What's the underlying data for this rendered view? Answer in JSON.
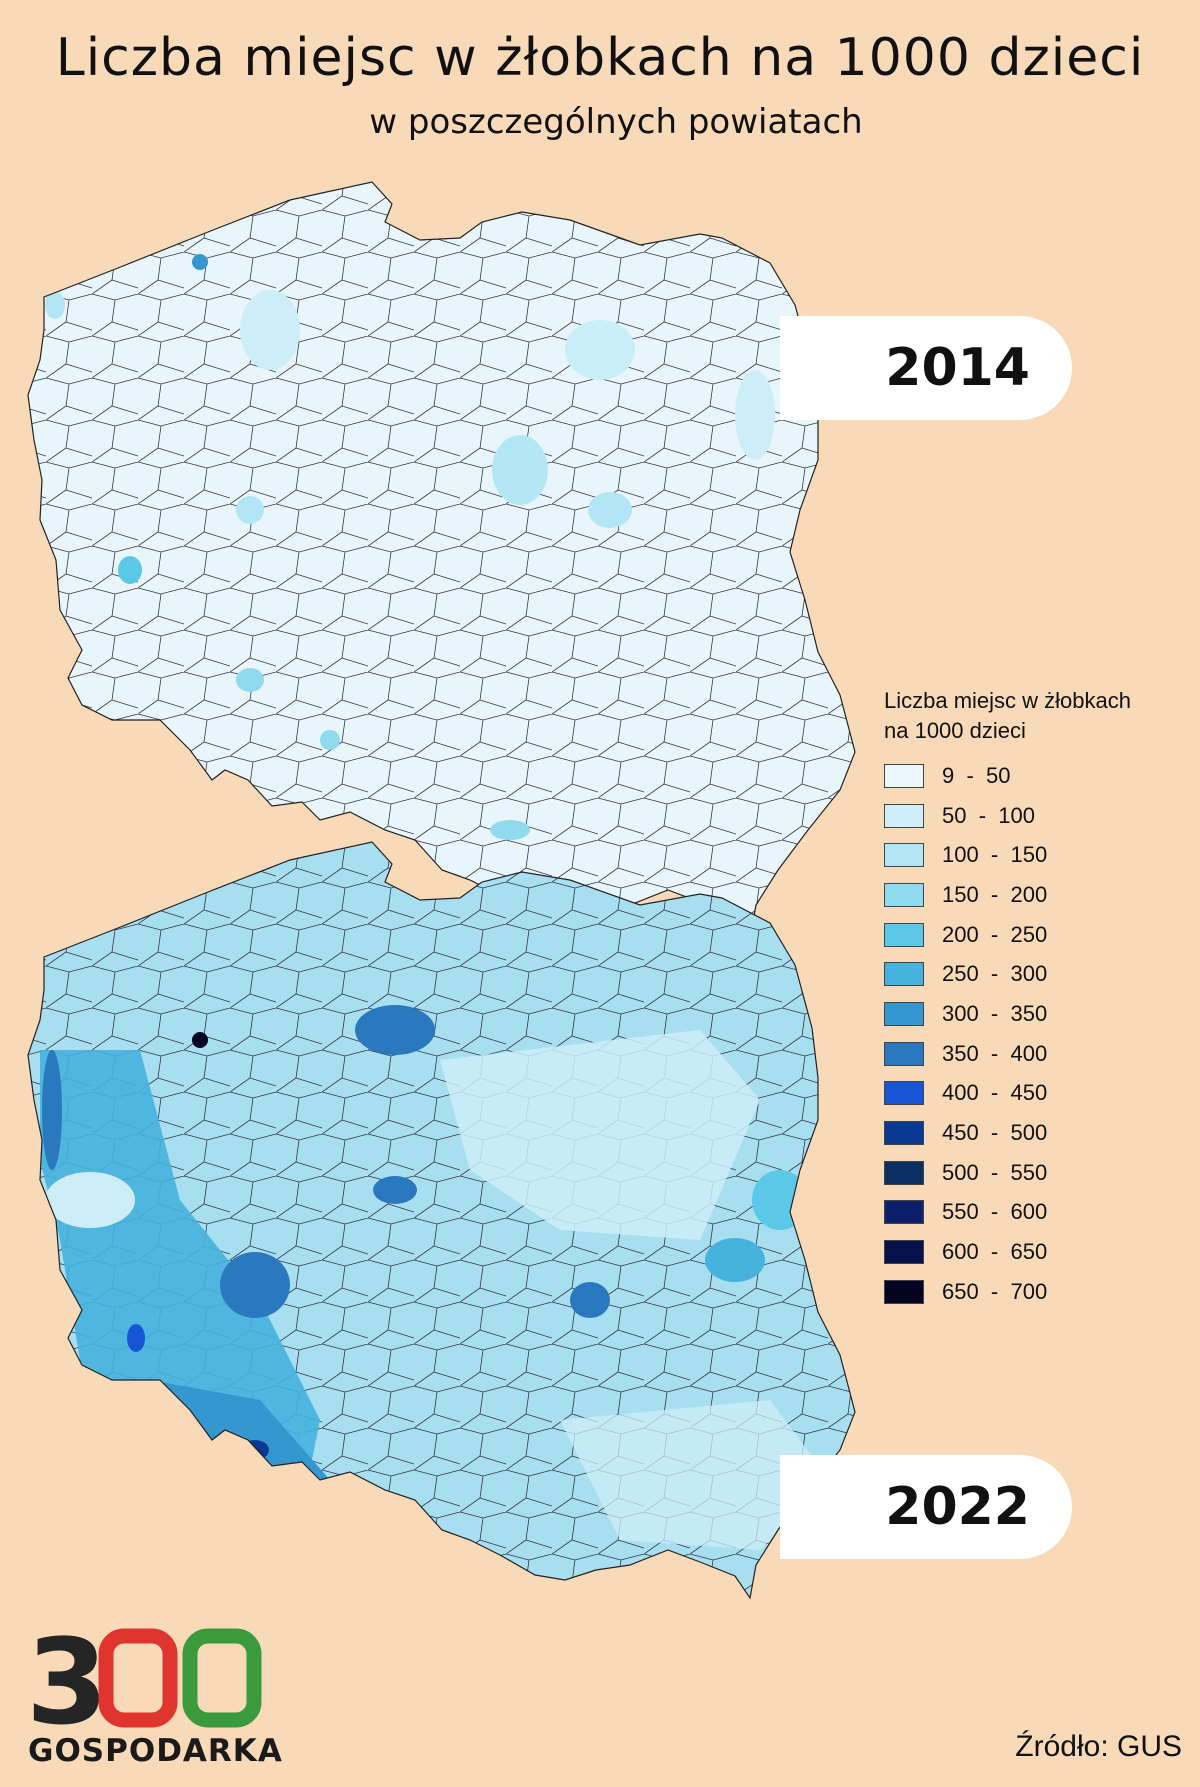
{
  "header": {
    "title": "Liczba miejsc w żłobkach na 1000 dzieci",
    "subtitle": "w poszczególnych powiatach"
  },
  "maps": [
    {
      "year": "2014",
      "dominant_color": "#e7f6fb"
    },
    {
      "year": "2022",
      "dominant_color": "#a8dff0"
    }
  ],
  "legend": {
    "title_line1": "Liczba miejsc w żłobkach",
    "title_line2": "na 1000 dzieci",
    "items": [
      {
        "label": "9  -  50",
        "color": "#eaf7fb"
      },
      {
        "label": "50  -  100",
        "color": "#cdeef8"
      },
      {
        "label": "100  -  150",
        "color": "#b2e6f4"
      },
      {
        "label": "150  -  200",
        "color": "#8fdaee"
      },
      {
        "label": "200  -  250",
        "color": "#5ac8e6"
      },
      {
        "label": "250  -  300",
        "color": "#45b3dd"
      },
      {
        "label": "300  -  350",
        "color": "#3497d0"
      },
      {
        "label": "350  -  400",
        "color": "#2a79bf"
      },
      {
        "label": "400  -  450",
        "color": "#1656d6"
      },
      {
        "label": "450  -  500",
        "color": "#083a94"
      },
      {
        "label": "500  -  550",
        "color": "#0b2e63"
      },
      {
        "label": "550  -  600",
        "color": "#0b1f6a"
      },
      {
        "label": "600  -  650",
        "color": "#07124a"
      },
      {
        "label": "650  -  700",
        "color": "#050522"
      }
    ]
  },
  "branding": {
    "logo_text": "GOSPODARKA",
    "logo_number": "300"
  },
  "footer": {
    "source": "Źródło: GUS"
  }
}
